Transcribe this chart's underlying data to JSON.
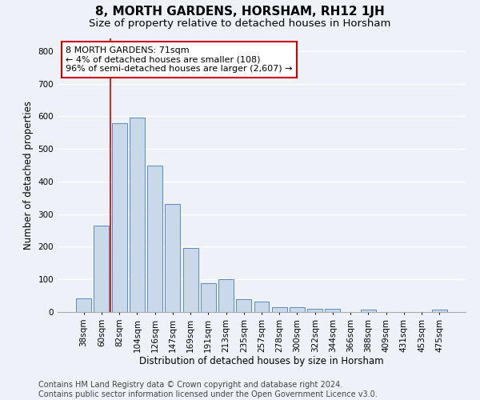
{
  "title": "8, MORTH GARDENS, HORSHAM, RH12 1JH",
  "subtitle": "Size of property relative to detached houses in Horsham",
  "xlabel": "Distribution of detached houses by size in Horsham",
  "ylabel": "Number of detached properties",
  "footer_line1": "Contains HM Land Registry data © Crown copyright and database right 2024.",
  "footer_line2": "Contains public sector information licensed under the Open Government Licence v3.0.",
  "bar_labels": [
    "38sqm",
    "60sqm",
    "82sqm",
    "104sqm",
    "126sqm",
    "147sqm",
    "169sqm",
    "191sqm",
    "213sqm",
    "235sqm",
    "257sqm",
    "278sqm",
    "300sqm",
    "322sqm",
    "344sqm",
    "366sqm",
    "388sqm",
    "409sqm",
    "431sqm",
    "453sqm",
    "475sqm"
  ],
  "bar_values": [
    42,
    265,
    580,
    595,
    450,
    330,
    195,
    88,
    100,
    40,
    33,
    15,
    15,
    10,
    10,
    0,
    7,
    0,
    0,
    0,
    7
  ],
  "bar_color": "#c9d9ea",
  "bar_edge_color": "#5a8abf",
  "annotation_text_line1": "8 MORTH GARDENS: 71sqm",
  "annotation_text_line2": "← 4% of detached houses are smaller (108)",
  "annotation_text_line3": "96% of semi-detached houses are larger (2,607) →",
  "annotation_box_color": "#ffffff",
  "annotation_box_edge_color": "#cc0000",
  "red_line_color": "#cc0000",
  "red_line_x": 1.5,
  "ylim": [
    0,
    840
  ],
  "yticks": [
    0,
    100,
    200,
    300,
    400,
    500,
    600,
    700,
    800
  ],
  "background_color": "#eef2f8",
  "plot_background": "#eef2f8",
  "grid_color": "#ffffff",
  "title_fontsize": 11,
  "subtitle_fontsize": 9.5,
  "axis_label_fontsize": 8.5,
  "tick_fontsize": 7.5,
  "annotation_fontsize": 8,
  "footer_fontsize": 7
}
